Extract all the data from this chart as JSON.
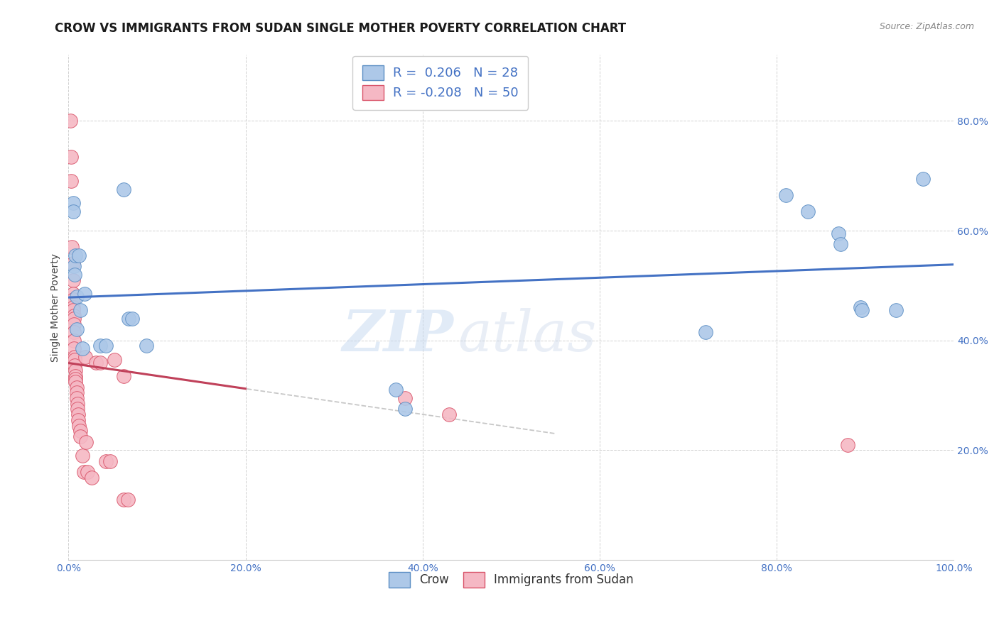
{
  "title": "CROW VS IMMIGRANTS FROM SUDAN SINGLE MOTHER POVERTY CORRELATION CHART",
  "source": "Source: ZipAtlas.com",
  "ylabel": "Single Mother Poverty",
  "xlim": [
    0,
    1.0
  ],
  "ylim": [
    0,
    0.92
  ],
  "xticks": [
    0.0,
    0.2,
    0.4,
    0.6,
    0.8,
    1.0
  ],
  "xtick_labels": [
    "0.0%",
    "20.0%",
    "40.0%",
    "60.0%",
    "80.0%",
    "100.0%"
  ],
  "ytick_labels": [
    "20.0%",
    "40.0%",
    "60.0%",
    "80.0%"
  ],
  "yticks": [
    0.2,
    0.4,
    0.6,
    0.8
  ],
  "crow_color": "#adc8e8",
  "crow_edge_color": "#5b8ec4",
  "sudan_color": "#f5b8c4",
  "sudan_edge_color": "#d9546a",
  "crow_R": 0.206,
  "crow_N": 28,
  "sudan_R": -0.208,
  "sudan_N": 50,
  "crow_reg_color": "#4472c4",
  "sudan_reg_color": "#c0415a",
  "crow_points": [
    [
      0.005,
      0.65
    ],
    [
      0.005,
      0.635
    ],
    [
      0.006,
      0.535
    ],
    [
      0.007,
      0.52
    ],
    [
      0.008,
      0.555
    ],
    [
      0.012,
      0.555
    ],
    [
      0.009,
      0.42
    ],
    [
      0.009,
      0.48
    ],
    [
      0.013,
      0.455
    ],
    [
      0.018,
      0.485
    ],
    [
      0.016,
      0.385
    ],
    [
      0.036,
      0.39
    ],
    [
      0.042,
      0.39
    ],
    [
      0.062,
      0.675
    ],
    [
      0.068,
      0.44
    ],
    [
      0.072,
      0.44
    ],
    [
      0.088,
      0.39
    ],
    [
      0.37,
      0.31
    ],
    [
      0.38,
      0.275
    ],
    [
      0.72,
      0.415
    ],
    [
      0.81,
      0.665
    ],
    [
      0.835,
      0.635
    ],
    [
      0.87,
      0.595
    ],
    [
      0.872,
      0.575
    ],
    [
      0.895,
      0.46
    ],
    [
      0.896,
      0.455
    ],
    [
      0.935,
      0.455
    ],
    [
      0.965,
      0.695
    ]
  ],
  "sudan_points": [
    [
      0.002,
      0.8
    ],
    [
      0.003,
      0.735
    ],
    [
      0.003,
      0.69
    ],
    [
      0.004,
      0.57
    ],
    [
      0.005,
      0.54
    ],
    [
      0.005,
      0.51
    ],
    [
      0.005,
      0.485
    ],
    [
      0.005,
      0.475
    ],
    [
      0.005,
      0.46
    ],
    [
      0.005,
      0.455
    ],
    [
      0.006,
      0.445
    ],
    [
      0.006,
      0.44
    ],
    [
      0.006,
      0.43
    ],
    [
      0.006,
      0.415
    ],
    [
      0.006,
      0.4
    ],
    [
      0.006,
      0.385
    ],
    [
      0.007,
      0.37
    ],
    [
      0.007,
      0.365
    ],
    [
      0.007,
      0.355
    ],
    [
      0.008,
      0.345
    ],
    [
      0.008,
      0.335
    ],
    [
      0.008,
      0.33
    ],
    [
      0.008,
      0.325
    ],
    [
      0.009,
      0.315
    ],
    [
      0.009,
      0.305
    ],
    [
      0.009,
      0.295
    ],
    [
      0.01,
      0.285
    ],
    [
      0.01,
      0.275
    ],
    [
      0.011,
      0.265
    ],
    [
      0.011,
      0.255
    ],
    [
      0.012,
      0.245
    ],
    [
      0.013,
      0.235
    ],
    [
      0.013,
      0.225
    ],
    [
      0.016,
      0.19
    ],
    [
      0.017,
      0.16
    ],
    [
      0.019,
      0.37
    ],
    [
      0.02,
      0.215
    ],
    [
      0.021,
      0.16
    ],
    [
      0.026,
      0.15
    ],
    [
      0.031,
      0.36
    ],
    [
      0.036,
      0.36
    ],
    [
      0.042,
      0.18
    ],
    [
      0.047,
      0.18
    ],
    [
      0.052,
      0.365
    ],
    [
      0.062,
      0.335
    ],
    [
      0.062,
      0.11
    ],
    [
      0.067,
      0.11
    ],
    [
      0.38,
      0.295
    ],
    [
      0.43,
      0.265
    ],
    [
      0.88,
      0.21
    ]
  ],
  "watermark_text": "ZIP",
  "watermark_text2": "atlas",
  "background_color": "#ffffff",
  "grid_color": "#cccccc",
  "title_fontsize": 12,
  "tick_fontsize": 10,
  "legend_fontsize": 12
}
